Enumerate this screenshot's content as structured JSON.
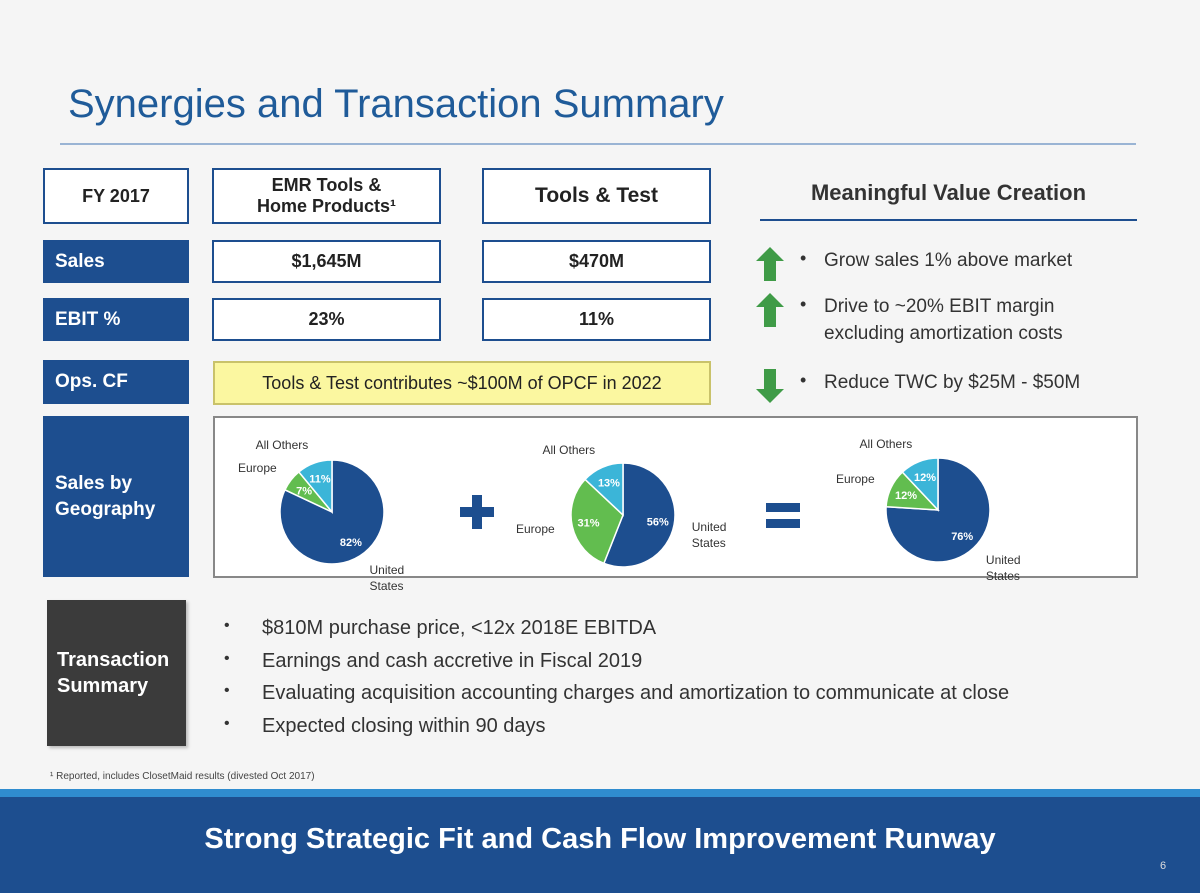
{
  "title": "Synergies and Transaction Summary",
  "table": {
    "header": [
      "FY 2017",
      "EMR Tools & Home Products¹",
      "Tools & Test"
    ],
    "rows": [
      [
        "Sales",
        "$1,645M",
        "$470M"
      ],
      [
        "EBIT %",
        "23%",
        "11%"
      ],
      [
        "Ops. CF",
        "Tools & Test contributes ~$100M of OPCF in 2022"
      ]
    ]
  },
  "value_creation": {
    "title": "Meaningful Value Creation",
    "items": [
      {
        "direction": "up",
        "text": "Grow sales 1% above market"
      },
      {
        "direction": "up",
        "text": "Drive to ~20% EBIT margin excluding amortization costs"
      },
      {
        "direction": "down",
        "text": "Reduce TWC by $25M - $50M"
      }
    ]
  },
  "geography": {
    "label": "Sales by Geography",
    "colors": [
      "#1d4e8f",
      "#62bd4f",
      "#3bb5d8"
    ],
    "pies": [
      {
        "type": "pie",
        "categories": [
          "United States",
          "Europe",
          "All Others"
        ],
        "values": [
          82,
          7,
          11
        ],
        "value_labels": [
          "82%",
          "7%",
          "11%"
        ]
      },
      {
        "type": "pie",
        "categories": [
          "United States",
          "Europe",
          "All Others"
        ],
        "values": [
          56,
          31,
          13
        ],
        "value_labels": [
          "56%",
          "31%",
          "13%"
        ]
      },
      {
        "type": "pie",
        "categories": [
          "United States",
          "Europe",
          "All Others"
        ],
        "values": [
          76,
          12,
          12
        ],
        "value_labels": [
          "76%",
          "12%",
          "12%"
        ]
      }
    ]
  },
  "transaction": {
    "label": "Transaction Summary",
    "items": [
      "$810M purchase price, <12x 2018E EBITDA",
      "Earnings and cash accretive in Fiscal 2019",
      "Evaluating acquisition accounting charges and amortization to communicate at close",
      "Expected closing within 90 days"
    ]
  },
  "footnote": "¹ Reported, includes ClosetMaid results (divested Oct 2017)",
  "banner": "Strong Strategic Fit and Cash Flow Improvement Runway",
  "page_number": "6"
}
